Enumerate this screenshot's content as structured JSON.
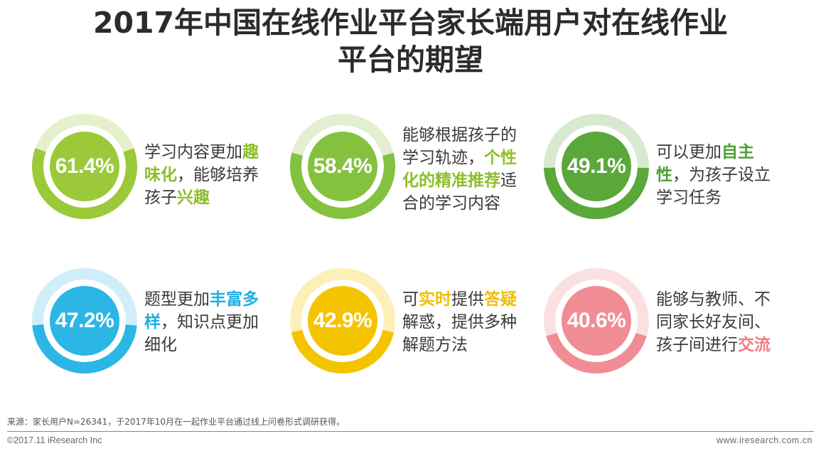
{
  "title": {
    "line1": "2017年中国在线作业平台家长端用户对在线作业",
    "line2": "平台的期望"
  },
  "chart_data": {
    "type": "donut",
    "unit": "%",
    "items": [
      {
        "value": 61.4,
        "label": "61.4%",
        "color": "#9bc93a",
        "light": "#e6f0cc",
        "description": [
          {
            "text": "学习内容更加"
          },
          {
            "text": "趣味化",
            "highlight": true
          },
          {
            "text": "，能够培养孩子"
          },
          {
            "text": "兴趣",
            "highlight": true
          }
        ],
        "highlight_color": "#8dbf2a"
      },
      {
        "value": 58.4,
        "label": "58.4%",
        "color": "#84c13f",
        "light": "#e2efd0",
        "description": [
          {
            "text": "能够根据孩子的学习轨迹，"
          },
          {
            "text": "个性化的精准推荐",
            "highlight": true
          },
          {
            "text": "适合的学习内容"
          }
        ],
        "highlight_color": "#8dbf2a"
      },
      {
        "value": 49.1,
        "label": "49.1%",
        "color": "#5aa83a",
        "light": "#d8e9cf",
        "description": [
          {
            "text": "可以更加"
          },
          {
            "text": "自主性",
            "highlight": true
          },
          {
            "text": "，为孩子设立学习任务"
          }
        ],
        "highlight_color": "#4ca133"
      },
      {
        "value": 47.2,
        "label": "47.2%",
        "color": "#2bb6e6",
        "light": "#cfeef9",
        "description": [
          {
            "text": "题型更加"
          },
          {
            "text": "丰富多样",
            "highlight": true
          },
          {
            "text": "，知识点更加细化"
          }
        ],
        "highlight_color": "#20aee0"
      },
      {
        "value": 42.9,
        "label": "42.9%",
        "color": "#f5c400",
        "light": "#fcefb8",
        "description": [
          {
            "text": "可"
          },
          {
            "text": "实时",
            "highlight": true
          },
          {
            "text": "提供"
          },
          {
            "text": "答疑",
            "highlight": true
          },
          {
            "text": "解惑，提供多种解题方法"
          }
        ],
        "highlight_color": "#f0be00"
      },
      {
        "value": 40.6,
        "label": "40.6%",
        "color": "#f08d94",
        "light": "#fbe0e2",
        "description": [
          {
            "text": "能够与教师、不同家长好友间、孩子间进行"
          },
          {
            "text": "交流",
            "highlight": true
          }
        ],
        "highlight_color": "#ee7d86"
      }
    ]
  },
  "footer": {
    "source": "来源：家长用户N=26341，于2017年10月在一起作业平台通过线上问卷形式调研获得。",
    "copyright": "©2017.11 iResearch Inc",
    "website": "www.iresearch.com.cn"
  }
}
